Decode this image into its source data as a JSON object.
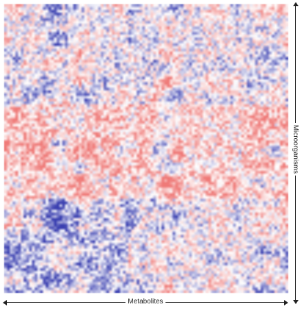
{
  "chart_data": {
    "type": "heatmap",
    "xlabel": "Metabolites",
    "ylabel": "Microorganisms",
    "colormap": {
      "negative": "#3a3fb0",
      "neutral": "#ffffff",
      "positive": "#ef7a78"
    },
    "grid": false,
    "values_note": ""
  }
}
